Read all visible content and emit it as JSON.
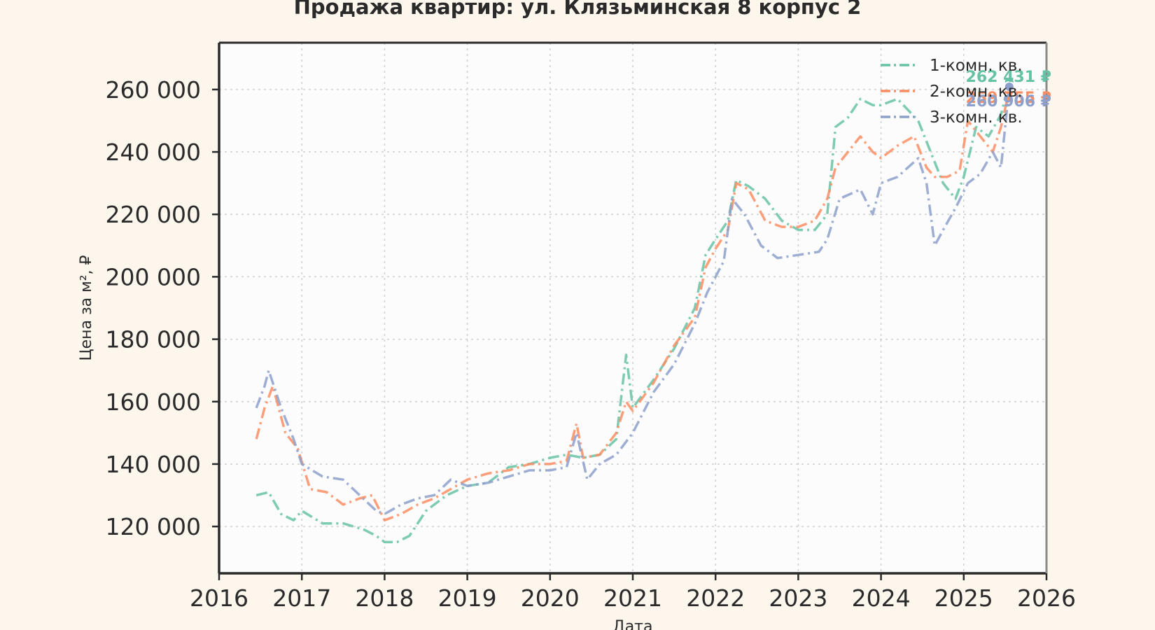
{
  "chart_data": {
    "type": "line",
    "title": "Продажа квартир: ул. Клязьминская 8 корпус 2",
    "xlabel": "Дата",
    "ylabel": "Цена за м², ₽",
    "xlim": [
      2016,
      2026
    ],
    "ylim": [
      105000,
      275000
    ],
    "x_ticks": [
      "2016",
      "2017",
      "2018",
      "2019",
      "2020",
      "2021",
      "2022",
      "2023",
      "2024",
      "2025",
      "2026"
    ],
    "y_ticks": [
      "120 000",
      "140 000",
      "160 000",
      "180 000",
      "200 000",
      "220 000",
      "240 000",
      "260 000"
    ],
    "grid": true,
    "legend_position": "top-right",
    "series": [
      {
        "name": "1-комн. кв.",
        "color": "#66c2a5",
        "end_label": "262 431 ₽",
        "x": [
          2016.45,
          2016.6,
          2016.75,
          2016.9,
          2017.0,
          2017.25,
          2017.5,
          2017.75,
          2017.9,
          2018.0,
          2018.15,
          2018.3,
          2018.5,
          2018.75,
          2019.0,
          2019.25,
          2019.5,
          2019.75,
          2020.0,
          2020.2,
          2020.4,
          2020.6,
          2020.8,
          2020.92,
          2021.0,
          2021.25,
          2021.5,
          2021.75,
          2021.88,
          2022.0,
          2022.15,
          2022.25,
          2022.4,
          2022.6,
          2022.8,
          2023.0,
          2023.2,
          2023.35,
          2023.45,
          2023.6,
          2023.75,
          2023.9,
          2024.0,
          2024.2,
          2024.45,
          2024.6,
          2024.75,
          2024.9,
          2025.0,
          2025.15,
          2025.3,
          2025.45,
          2025.55
        ],
        "values": [
          130000,
          131000,
          124000,
          122000,
          125000,
          121000,
          121000,
          119000,
          117000,
          115000,
          115000,
          117000,
          125000,
          130000,
          133000,
          134000,
          139000,
          140000,
          142000,
          143000,
          142000,
          143000,
          148000,
          175000,
          158000,
          167000,
          177000,
          190000,
          207000,
          212000,
          218000,
          231000,
          229000,
          225000,
          218000,
          215000,
          215000,
          220000,
          248000,
          251000,
          257000,
          255000,
          255000,
          257000,
          250000,
          240000,
          230000,
          225000,
          232000,
          248000,
          245000,
          252000,
          262431
        ]
      },
      {
        "name": "2-комн. кв.",
        "color": "#fc8d62",
        "end_label": "259 755 ₽",
        "x": [
          2016.45,
          2016.55,
          2016.65,
          2016.8,
          2016.95,
          2017.1,
          2017.3,
          2017.5,
          2017.7,
          2017.85,
          2018.0,
          2018.2,
          2018.4,
          2018.6,
          2018.8,
          2019.0,
          2019.25,
          2019.5,
          2019.75,
          2020.0,
          2020.2,
          2020.32,
          2020.4,
          2020.6,
          2020.8,
          2020.92,
          2021.0,
          2021.25,
          2021.5,
          2021.75,
          2021.88,
          2022.0,
          2022.15,
          2022.25,
          2022.4,
          2022.6,
          2022.8,
          2023.0,
          2023.2,
          2023.35,
          2023.45,
          2023.6,
          2023.75,
          2023.9,
          2024.0,
          2024.2,
          2024.4,
          2024.55,
          2024.65,
          2024.8,
          2024.95,
          2025.05,
          2025.2,
          2025.35,
          2025.45,
          2025.55
        ],
        "values": [
          148000,
          158000,
          165000,
          150000,
          145000,
          132000,
          131000,
          127000,
          129000,
          130000,
          122000,
          124000,
          127000,
          129000,
          132000,
          135000,
          137000,
          138000,
          140000,
          140000,
          141000,
          153000,
          142000,
          143000,
          150000,
          160000,
          157000,
          166000,
          178000,
          187000,
          203000,
          209000,
          215000,
          230000,
          228000,
          218000,
          216000,
          216000,
          218000,
          225000,
          235000,
          240000,
          245000,
          240000,
          238000,
          242000,
          245000,
          235000,
          232000,
          232000,
          234000,
          250000,
          245000,
          240000,
          248000,
          259755
        ]
      },
      {
        "name": "3-комн. кв.",
        "color": "#8da0cb",
        "end_label": "260 906 ₽",
        "x": [
          2016.45,
          2016.55,
          2016.6,
          2016.75,
          2016.9,
          2017.0,
          2017.25,
          2017.5,
          2017.7,
          2017.9,
          2018.0,
          2018.2,
          2018.4,
          2018.6,
          2018.8,
          2019.0,
          2019.25,
          2019.5,
          2019.75,
          2020.0,
          2020.2,
          2020.32,
          2020.45,
          2020.6,
          2020.8,
          2021.0,
          2021.25,
          2021.5,
          2021.75,
          2021.9,
          2022.0,
          2022.1,
          2022.2,
          2022.35,
          2022.55,
          2022.75,
          2023.0,
          2023.25,
          2023.35,
          2023.5,
          2023.75,
          2023.9,
          2024.0,
          2024.2,
          2024.45,
          2024.55,
          2024.65,
          2024.75,
          2024.9,
          2025.05,
          2025.2,
          2025.35,
          2025.45,
          2025.55
        ],
        "values": [
          158000,
          165000,
          170000,
          158000,
          148000,
          140000,
          136000,
          135000,
          130000,
          125000,
          124000,
          127000,
          129000,
          130000,
          135000,
          133000,
          134000,
          136000,
          138000,
          138000,
          139000,
          150000,
          135000,
          140000,
          143000,
          150000,
          163000,
          172000,
          185000,
          195000,
          200000,
          205000,
          225000,
          220000,
          210000,
          206000,
          207000,
          208000,
          212000,
          225000,
          228000,
          220000,
          230000,
          232000,
          238000,
          230000,
          210000,
          215000,
          222000,
          230000,
          233000,
          240000,
          235000,
          260906
        ]
      }
    ]
  }
}
